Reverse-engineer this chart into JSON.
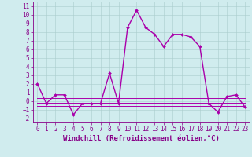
{
  "xlabel": "Windchill (Refroidissement éolien,°C)",
  "x": [
    0,
    1,
    2,
    3,
    4,
    5,
    6,
    7,
    8,
    9,
    10,
    11,
    12,
    13,
    14,
    15,
    16,
    17,
    18,
    19,
    20,
    21,
    22,
    23
  ],
  "line1": [
    2.0,
    -0.3,
    0.7,
    0.7,
    -1.6,
    -0.3,
    -0.3,
    -0.3,
    3.2,
    -0.3,
    8.5,
    10.5,
    8.5,
    7.7,
    6.3,
    7.7,
    7.7,
    7.4,
    6.3,
    -0.3,
    -1.3,
    0.5,
    0.7,
    -0.7
  ],
  "flat_line1": [
    0.5,
    0.5,
    0.5,
    0.5,
    0.5,
    0.5,
    0.5,
    0.5,
    0.5,
    0.5,
    0.5,
    0.5,
    0.5,
    0.5,
    0.5,
    0.5,
    0.5,
    0.5,
    0.5,
    0.5,
    0.5,
    0.5,
    0.5,
    0.5
  ],
  "flat_line2": [
    0.3,
    0.3,
    0.3,
    0.3,
    0.3,
    0.3,
    0.3,
    0.3,
    0.3,
    0.3,
    0.3,
    0.3,
    0.3,
    0.3,
    0.3,
    0.3,
    0.3,
    0.3,
    0.3,
    0.3,
    0.3,
    0.3,
    0.3,
    0.3
  ],
  "flat_line3": [
    -0.2,
    -0.2,
    -0.2,
    -0.2,
    -0.2,
    -0.2,
    -0.2,
    -0.2,
    -0.2,
    -0.2,
    -0.2,
    -0.2,
    -0.2,
    -0.2,
    -0.2,
    -0.2,
    -0.2,
    -0.2,
    -0.2,
    -0.2,
    -0.2,
    -0.2,
    -0.2,
    -0.2
  ],
  "flat_line4": [
    -0.6,
    -0.6,
    -0.6,
    -0.6,
    -0.6,
    -0.6,
    -0.6,
    -0.6,
    -0.6,
    -0.6,
    -0.6,
    -0.6,
    -0.6,
    -0.6,
    -0.6,
    -0.6,
    -0.6,
    -0.6,
    -0.6,
    -0.6,
    -0.6,
    -0.6,
    -0.6,
    -0.6
  ],
  "ylim": [
    -2.5,
    11.5
  ],
  "yticks": [
    -2,
    -1,
    0,
    1,
    2,
    3,
    4,
    5,
    6,
    7,
    8,
    9,
    10,
    11
  ],
  "xlim": [
    -0.5,
    23.5
  ],
  "xticks": [
    0,
    1,
    2,
    3,
    4,
    5,
    6,
    7,
    8,
    9,
    10,
    11,
    12,
    13,
    14,
    15,
    16,
    17,
    18,
    19,
    20,
    21,
    22,
    23
  ],
  "bg_color": "#d0ecee",
  "line_color": "#aa00aa",
  "grid_color": "#aacccc",
  "label_color": "#880088",
  "tick_color": "#880088",
  "markersize": 2.0,
  "linewidth": 1.0,
  "xlabel_fontsize": 6.5,
  "tick_fontsize": 5.5
}
